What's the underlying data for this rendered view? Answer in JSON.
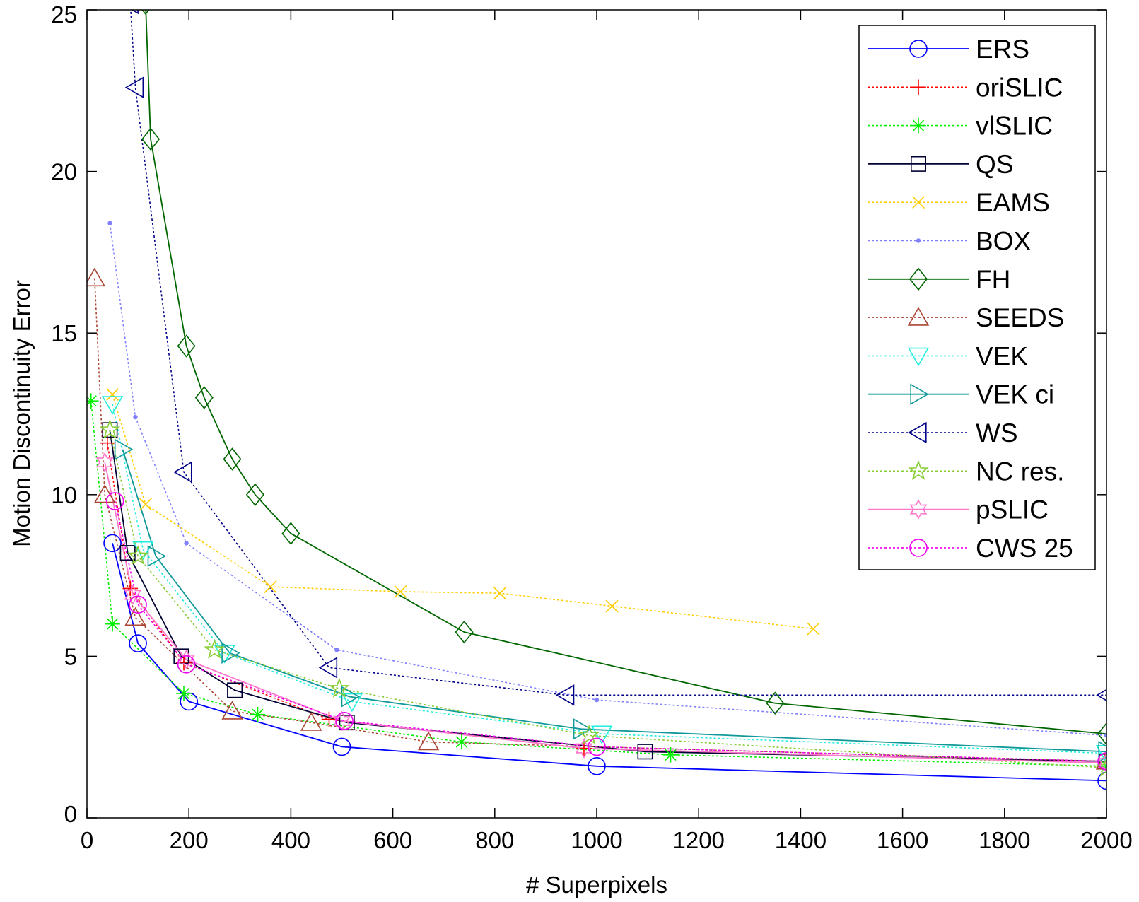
{
  "chart_data": {
    "type": "line",
    "xlabel": "# Superpixels",
    "ylabel": "Motion Discontinuity Error",
    "xlim": [
      0,
      2000
    ],
    "ylim": [
      0,
      25
    ],
    "xticks": [
      0,
      200,
      400,
      600,
      800,
      1000,
      1200,
      1400,
      1600,
      1800,
      2000
    ],
    "yticks": [
      0,
      5,
      10,
      15,
      20,
      25
    ],
    "legend_position": "top-right",
    "series": [
      {
        "name": "ERS",
        "color": "#0000ff",
        "dash": "solid",
        "marker": "circle",
        "x": [
          50,
          100,
          200,
          500,
          1000,
          2000
        ],
        "y": [
          8.5,
          5.4,
          3.6,
          2.2,
          1.6,
          1.15
        ]
      },
      {
        "name": "oriSLIC",
        "color": "#ff0000",
        "dash": "dotted",
        "marker": "plus",
        "x": [
          40,
          85,
          190,
          475,
          975,
          2000
        ],
        "y": [
          11.6,
          7.1,
          4.8,
          3.05,
          2.15,
          1.7
        ]
      },
      {
        "name": "vlSLIC",
        "color": "#00ee00",
        "dash": "dotted",
        "marker": "asterisk",
        "x": [
          8,
          50,
          190,
          335,
          735,
          1145,
          2000
        ],
        "y": [
          12.9,
          6.0,
          3.85,
          3.2,
          2.35,
          1.95,
          1.6
        ]
      },
      {
        "name": "QS",
        "color": "#000033",
        "dash": "solid",
        "marker": "square",
        "x": [
          45,
          80,
          185,
          290,
          510,
          1095,
          2000
        ],
        "y": [
          12.0,
          8.2,
          5.0,
          3.95,
          2.95,
          2.05,
          1.75
        ]
      },
      {
        "name": "EAMS",
        "color": "#ffcc00",
        "dash": "dotted",
        "marker": "x",
        "x": [
          50,
          115,
          360,
          615,
          810,
          1030,
          1425
        ],
        "y": [
          13.1,
          9.7,
          7.15,
          7.0,
          6.95,
          6.55,
          5.85
        ]
      },
      {
        "name": "BOX",
        "color": "#8080ff",
        "dash": "dotted",
        "marker": "dot",
        "x": [
          45,
          95,
          195,
          490,
          1000,
          2000
        ],
        "y": [
          18.4,
          12.4,
          8.5,
          5.2,
          3.65,
          2.55
        ]
      },
      {
        "name": "FH",
        "color": "#006600",
        "dash": "solid",
        "marker": "diamond",
        "x": [
          115,
          125,
          195,
          230,
          285,
          330,
          400,
          740,
          1350,
          2000
        ],
        "y": [
          25.2,
          21.0,
          14.6,
          13.0,
          11.1,
          10.0,
          8.8,
          5.75,
          3.55,
          2.6
        ]
      },
      {
        "name": "SEEDS",
        "color": "#aa4433",
        "dash": "dotted",
        "marker": "triangle-up",
        "x": [
          15,
          35,
          95,
          285,
          440,
          670,
          2000
        ],
        "y": [
          16.7,
          10.0,
          6.2,
          3.3,
          2.95,
          2.35,
          1.75
        ]
      },
      {
        "name": "VEK",
        "color": "#22eedd",
        "dash": "dotted",
        "marker": "triangle-down",
        "x": [
          50,
          110,
          270,
          520,
          1010,
          2000
        ],
        "y": [
          12.8,
          8.3,
          5.1,
          3.6,
          2.6,
          2.0
        ]
      },
      {
        "name": "VEK ci",
        "color": "#119999",
        "dash": "solid",
        "marker": "triangle-right",
        "x": [
          70,
          135,
          280,
          515,
          970,
          2000
        ],
        "y": [
          11.4,
          8.1,
          5.1,
          3.75,
          2.75,
          2.05
        ]
      },
      {
        "name": "WS",
        "color": "#000088",
        "dash": "dotted",
        "marker": "triangle-left",
        "x": [
          85,
          95,
          190,
          475,
          940,
          2000
        ],
        "y": [
          25.2,
          22.6,
          10.7,
          4.65,
          3.8,
          3.8
        ]
      },
      {
        "name": "NC res.",
        "color": "#88cc33",
        "dash": "dotted",
        "marker": "star5",
        "x": [
          45,
          100,
          250,
          495,
          985,
          2000
        ],
        "y": [
          12.0,
          8.1,
          5.2,
          4.0,
          2.55,
          1.55
        ]
      },
      {
        "name": "pSLIC",
        "color": "#ff77cc",
        "dash": "solid",
        "marker": "star6",
        "x": [
          35,
          90,
          195,
          500,
          975,
          2000
        ],
        "y": [
          11.0,
          6.9,
          4.9,
          3.0,
          2.15,
          1.7
        ]
      },
      {
        "name": "CWS 25",
        "color": "#ee00ee",
        "dash": "dotted",
        "marker": "circle",
        "x": [
          55,
          100,
          195,
          505,
          1000,
          2000
        ],
        "y": [
          9.8,
          6.6,
          4.75,
          3.0,
          2.2,
          1.75
        ]
      }
    ]
  }
}
